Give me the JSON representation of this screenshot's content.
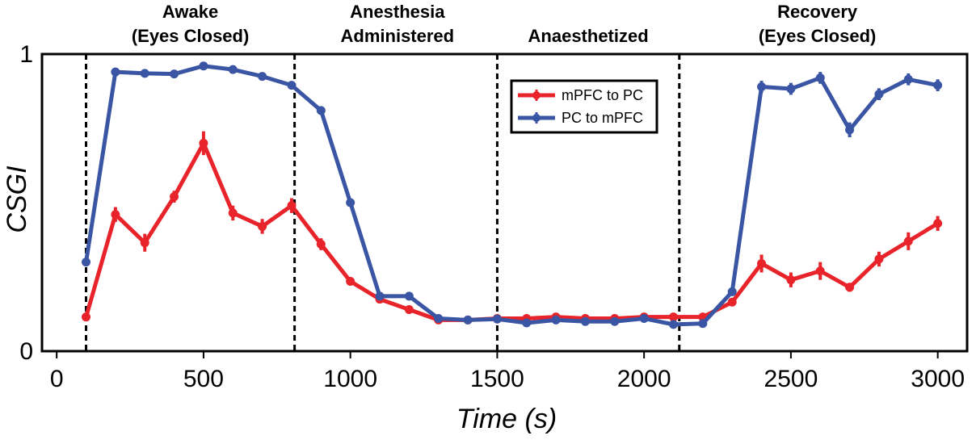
{
  "chart_data": {
    "type": "line",
    "title": "",
    "xlabel": "Time (s)",
    "ylabel": "CSGI",
    "xlim": [
      -50,
      3100
    ],
    "ylim": [
      0,
      1
    ],
    "xticks": [
      0,
      500,
      1000,
      1500,
      2000,
      2500,
      3000
    ],
    "xtick_labels": [
      "0",
      "500",
      "1000",
      "1500",
      "2000",
      "2500",
      "3000"
    ],
    "yticks": [
      0,
      1
    ],
    "ytick_labels": [
      "0",
      "1"
    ],
    "grid": false,
    "legend_position": "top-center",
    "phases": [
      {
        "lines": [
          "Awake",
          "(Eyes Closed)"
        ],
        "center": 455
      },
      {
        "lines": [
          "Anesthesia",
          "Administered"
        ],
        "center": 1160
      },
      {
        "lines": [
          "Anaesthetized"
        ],
        "center": 1810
      },
      {
        "lines": [
          "Recovery",
          "(Eyes Closed)"
        ],
        "center": 2590
      }
    ],
    "dividers": [
      100,
      810,
      1500,
      2120
    ],
    "series": [
      {
        "name": "mPFC to PC",
        "color": "#e8232a",
        "x": [
          100,
          200,
          300,
          400,
          500,
          600,
          700,
          800,
          900,
          1000,
          1100,
          1200,
          1300,
          1400,
          1500,
          1600,
          1700,
          1800,
          1900,
          2000,
          2100,
          2200,
          2300,
          2400,
          2500,
          2600,
          2700,
          2800,
          2900,
          3000
        ],
        "y": [
          0.115,
          0.46,
          0.365,
          0.52,
          0.7,
          0.465,
          0.42,
          0.49,
          0.36,
          0.235,
          0.175,
          0.14,
          0.105,
          0.105,
          0.11,
          0.11,
          0.115,
          0.11,
          0.11,
          0.115,
          0.115,
          0.115,
          0.165,
          0.295,
          0.24,
          0.27,
          0.215,
          0.31,
          0.37,
          0.43
        ],
        "err": [
          0.01,
          0.025,
          0.03,
          0.02,
          0.04,
          0.025,
          0.025,
          0.025,
          0.02,
          0.01,
          0.01,
          0.01,
          0.008,
          0.008,
          0.008,
          0.008,
          0.008,
          0.008,
          0.008,
          0.008,
          0.008,
          0.008,
          0.01,
          0.03,
          0.025,
          0.03,
          0.015,
          0.025,
          0.03,
          0.025
        ]
      },
      {
        "name": "PC to mPFC",
        "color": "#3a55a4",
        "x": [
          100,
          200,
          300,
          400,
          500,
          600,
          700,
          800,
          900,
          1000,
          1100,
          1200,
          1300,
          1400,
          1500,
          1600,
          1700,
          1800,
          1900,
          2000,
          2100,
          2200,
          2300,
          2400,
          2500,
          2600,
          2700,
          2800,
          2900,
          3000
        ],
        "y": [
          0.3,
          0.94,
          0.935,
          0.933,
          0.96,
          0.948,
          0.925,
          0.895,
          0.81,
          0.5,
          0.185,
          0.185,
          0.11,
          0.105,
          0.108,
          0.095,
          0.105,
          0.1,
          0.1,
          0.11,
          0.09,
          0.093,
          0.2,
          0.89,
          0.883,
          0.92,
          0.745,
          0.865,
          0.915,
          0.895
        ],
        "err": [
          0.008,
          0.008,
          0.008,
          0.008,
          0.008,
          0.008,
          0.008,
          0.008,
          0.008,
          0.008,
          0.008,
          0.008,
          0.008,
          0.008,
          0.008,
          0.008,
          0.008,
          0.008,
          0.008,
          0.008,
          0.008,
          0.008,
          0.01,
          0.02,
          0.02,
          0.02,
          0.025,
          0.02,
          0.02,
          0.02
        ]
      }
    ]
  }
}
